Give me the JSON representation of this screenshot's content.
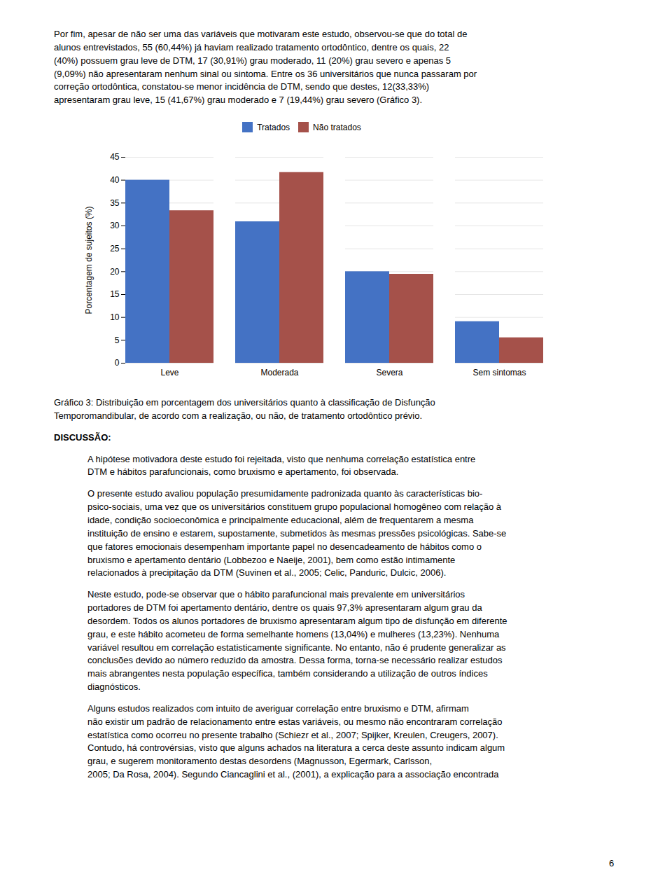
{
  "chart_data": {
    "type": "bar",
    "categories": [
      "Leve",
      "Moderada",
      "Severa",
      "Sem sintomas"
    ],
    "series": [
      {
        "name": "Tratados",
        "color": "#4472C4",
        "values": [
          40.0,
          30.91,
          20.0,
          9.09
        ]
      },
      {
        "name": "Não tratados",
        "color": "#A5514A",
        "values": [
          33.33,
          41.67,
          19.44,
          5.56
        ]
      }
    ],
    "ylabel": "Porcentagem de sujeitos (%)",
    "ylim": [
      0,
      45
    ],
    "yticks": [
      0,
      5,
      10,
      15,
      20,
      25,
      30,
      35,
      40,
      45
    ],
    "grid": true,
    "legend": "top",
    "annotations": [
      "Por fim, apesar de não ser uma das variáveis que motivaram este estudo, observou-se que do total de\nalunos entrevistados, 55 (60,44%) já haviam realizado tratamento ortodôntico, dentre os quais, 22\n(40%) possuem grau leve de DTM, 17 (30,91%) grau moderado, 11 (20%) grau severo e apenas 5\n(9,09%) não apresentaram nenhum sinal ou sintoma. Entre os 36 universitários que nunca passaram por\ncorreção ortodôntica, constatou-se menor incidência de DTM, sendo que destes, 12(33,33%)\napresentaram grau leve, 15 (41,67%) grau moderado e 7 (19,44%) grau severo (Gráfico 3).",
      "Gráfico 3: Distribuição em porcentagem dos universitários quanto à classificação de Disfunção\nTemporomandibular, de acordo com a realização, ou não, de tratamento ortodôntico prévio.",
      "DISCUSSÃO:",
      "A hipótese motivadora deste estudo foi rejeitada, visto que nenhuma correlação estatística entre\nDTM e hábitos parafuncionais, como bruxismo e apertamento, foi observada.",
      "O presente estudo avaliou população presumidamente padronizada quanto às características bio-\npsico-sociais, uma vez que os universitários constituem grupo populacional homogêneo com relação à\nidade, condição socioeconômica e principalmente educacional, além de frequentarem a mesma\ninstituição de ensino e estarem, supostamente, submetidos às mesmas pressões psicológicas. Sabe-se\nque fatores emocionais desempenham importante papel no desencadeamento de hábitos como o\nbruxismo e apertamento dentário (Lobbezoo e Naeije, 2001), bem como estão intimamente\nrelacionados à precipitação da DTM (Suvinen et al., 2005; Celic, Panduric, Dulcic, 2006).",
      "Neste estudo, pode-se observar que o hábito parafuncional mais prevalente em universitários\nportadores de DTM foi apertamento dentário, dentre os quais 97,3% apresentaram algum grau da\ndesordem. Todos os alunos portadores de bruxismo apresentaram algum tipo de disfunção em diferente\ngrau, e este hábito acometeu de forma semelhante homens (13,04%) e mulheres (13,23%). Nenhuma\nvariável resultou em correlação estatisticamente significante. No entanto, não é prudente generalizar as\nconclusões devido ao número reduzido da amostra. Dessa forma, torna-se necessário realizar estudos\nmais abrangentes nesta população específica, também considerando a utilização de outros índices\ndiagnósticos.",
      "Alguns estudos realizados com intuito de averiguar correlação entre bruxismo e DTM, afirmam\nnão existir um padrão de relacionamento entre estas variáveis, ou mesmo não encontraram correlação\nestatística como ocorreu no presente trabalho (Schiezr et al., 2007; Spijker, Kreulen, Creugers, 2007).\nContudo, há controvérsias, visto que alguns achados na literatura a cerca deste assunto indicam algum\ngrau, e sugerem monitoramento destas desordens (Magnusson, Egermark, Carlsson,\n2005; Da Rosa, 2004). Segundo Ciancaglini et al., (2001), a explicação para a associação encontrada",
      "6"
    ]
  }
}
